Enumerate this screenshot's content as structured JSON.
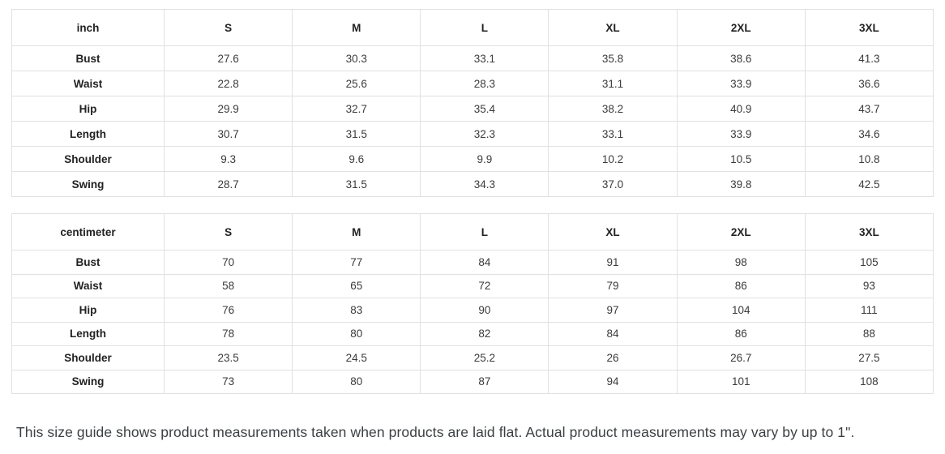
{
  "chart_data": [
    {
      "type": "table",
      "title": "inch",
      "columns": [
        "S",
        "M",
        "L",
        "XL",
        "2XL",
        "3XL"
      ],
      "rows": [
        {
          "label": "Bust",
          "values": [
            "27.6",
            "30.3",
            "33.1",
            "35.8",
            "38.6",
            "41.3"
          ]
        },
        {
          "label": "Waist",
          "values": [
            "22.8",
            "25.6",
            "28.3",
            "31.1",
            "33.9",
            "36.6"
          ]
        },
        {
          "label": "Hip",
          "values": [
            "29.9",
            "32.7",
            "35.4",
            "38.2",
            "40.9",
            "43.7"
          ]
        },
        {
          "label": "Length",
          "values": [
            "30.7",
            "31.5",
            "32.3",
            "33.1",
            "33.9",
            "34.6"
          ]
        },
        {
          "label": "Shoulder",
          "values": [
            "9.3",
            "9.6",
            "9.9",
            "10.2",
            "10.5",
            "10.8"
          ]
        },
        {
          "label": "Swing",
          "values": [
            "28.7",
            "31.5",
            "34.3",
            "37.0",
            "39.8",
            "42.5"
          ]
        }
      ]
    },
    {
      "type": "table",
      "title": "centimeter",
      "columns": [
        "S",
        "M",
        "L",
        "XL",
        "2XL",
        "3XL"
      ],
      "rows": [
        {
          "label": "Bust",
          "values": [
            "70",
            "77",
            "84",
            "91",
            "98",
            "105"
          ]
        },
        {
          "label": "Waist",
          "values": [
            "58",
            "65",
            "72",
            "79",
            "86",
            "93"
          ]
        },
        {
          "label": "Hip",
          "values": [
            "76",
            "83",
            "90",
            "97",
            "104",
            "111"
          ]
        },
        {
          "label": "Length",
          "values": [
            "78",
            "80",
            "82",
            "84",
            "86",
            "88"
          ]
        },
        {
          "label": "Shoulder",
          "values": [
            "23.5",
            "24.5",
            "25.2",
            "26",
            "26.7",
            "27.5"
          ]
        },
        {
          "label": "Swing",
          "values": [
            "73",
            "80",
            "87",
            "94",
            "101",
            "108"
          ]
        }
      ]
    }
  ],
  "footer": {
    "note": "This size guide shows product measurements taken when products are laid flat. Actual product measurements may vary by up to 1\"."
  },
  "colors": {
    "background": "#ffffff",
    "border": "#e1e1e1",
    "cell_text": "#3b3b3b",
    "header_text": "#222222",
    "footnote_text": "#3c4043"
  }
}
